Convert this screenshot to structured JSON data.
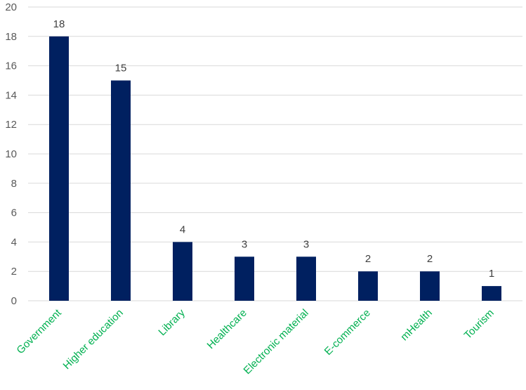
{
  "chart_data": {
    "type": "bar",
    "title": "",
    "xlabel": "",
    "ylabel": "",
    "categories": [
      "Government",
      "Higher education",
      "Library",
      "Healthcare",
      "Electronic material",
      "E-commerce",
      "mHealth",
      "Tourism"
    ],
    "values": [
      18,
      15,
      4,
      3,
      3,
      2,
      2,
      1
    ],
    "ylim": [
      0,
      20
    ],
    "yticks": [
      0,
      2,
      4,
      6,
      8,
      10,
      12,
      14,
      16,
      18,
      20
    ],
    "grid": true,
    "legend": "none",
    "data_labels": true,
    "bar_color": "#002060",
    "category_label_color": "#00b050",
    "category_label_rotation": -45
  }
}
